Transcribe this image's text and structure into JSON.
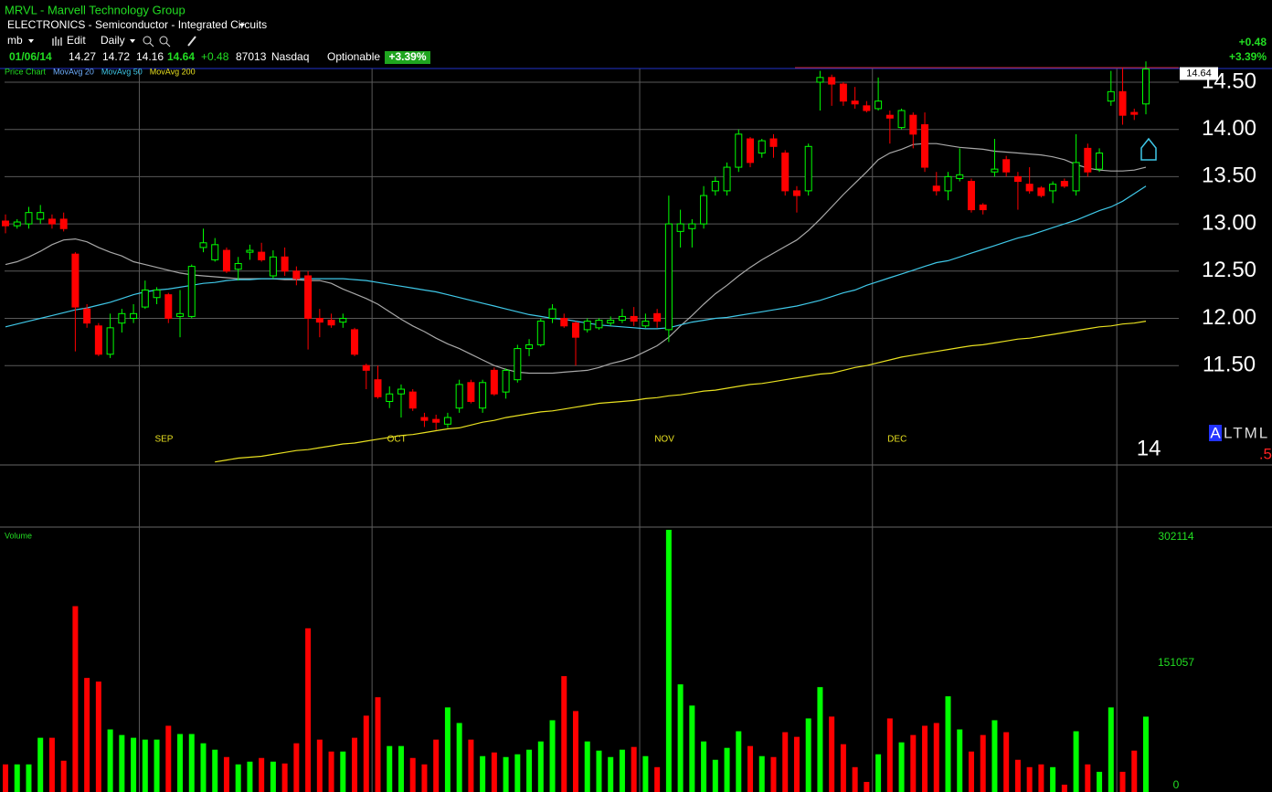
{
  "header": {
    "title": "MRVL - Marvell Technology Group",
    "industry": "ELECTRONICS - Semiconductor - Integrated Circuits",
    "account": "mb",
    "edit": "Edit",
    "period": "Daily",
    "date": "01/06/14",
    "exchange": "Nasdaq",
    "optionable": "Optionable",
    "change": "+0.48",
    "change_pct": "+3.39%"
  },
  "corner": {
    "badge": "A",
    "text": "LTML",
    "red": ".5"
  },
  "chart_data": {
    "type": "candlestick",
    "price_label": "Price Chart",
    "volume_label": "Volume",
    "categories": [
      null,
      null,
      null,
      null,
      null,
      null,
      null,
      null,
      null,
      null,
      null,
      null,
      "SEP",
      null,
      null,
      null,
      null,
      null,
      null,
      null,
      null,
      null,
      null,
      null,
      null,
      null,
      null,
      null,
      null,
      null,
      null,
      null,
      "OCT",
      null,
      null,
      null,
      null,
      null,
      null,
      null,
      null,
      null,
      null,
      null,
      null,
      null,
      null,
      null,
      null,
      null,
      null,
      null,
      null,
      null,
      null,
      "NOV",
      null,
      null,
      null,
      null,
      null,
      null,
      null,
      null,
      null,
      null,
      null,
      null,
      null,
      null,
      null,
      null,
      null,
      null,
      null,
      "DEC",
      null,
      null,
      null,
      null,
      null,
      null,
      null,
      null,
      null,
      null,
      null,
      null,
      null,
      null,
      null,
      null,
      null,
      null,
      null,
      null,
      "14",
      null,
      null
    ],
    "open": [
      13.03,
      12.98,
      13.0,
      13.05,
      13.05,
      13.05,
      12.68,
      12.1,
      11.92,
      11.62,
      11.95,
      12.0,
      12.12,
      12.22,
      12.25,
      12.02,
      12.02,
      12.75,
      12.62,
      12.72,
      12.52,
      12.7,
      12.7,
      12.45,
      12.65,
      12.5,
      12.45,
      12.0,
      11.98,
      11.96,
      11.88,
      11.5,
      11.35,
      11.12,
      11.2,
      11.22,
      10.95,
      10.93,
      10.88,
      11.05,
      11.32,
      11.05,
      11.45,
      11.22,
      11.35,
      11.68,
      11.72,
      12.0,
      12.0,
      11.95,
      11.88,
      11.9,
      11.95,
      11.98,
      12.02,
      11.92,
      12.05,
      11.88,
      12.92,
      12.95,
      13.0,
      13.35,
      13.35,
      13.6,
      13.9,
      13.75,
      13.9,
      13.75,
      13.35,
      13.35,
      14.5,
      14.55,
      14.48,
      14.3,
      14.25,
      14.22,
      14.15,
      14.02,
      14.15,
      14.05,
      13.4,
      13.35,
      13.48,
      13.45,
      13.2,
      13.55,
      13.68,
      13.5,
      13.42,
      13.38,
      13.35,
      13.45,
      13.35,
      13.8,
      13.58,
      14.3,
      14.4,
      14.18,
      14.27
    ],
    "high": [
      13.1,
      13.05,
      13.18,
      13.2,
      13.1,
      13.12,
      12.7,
      12.15,
      11.95,
      12.05,
      12.1,
      12.15,
      12.4,
      12.33,
      12.27,
      12.3,
      12.57,
      12.95,
      12.85,
      12.75,
      12.65,
      12.78,
      12.8,
      12.72,
      12.75,
      12.55,
      12.5,
      12.1,
      12.05,
      12.05,
      11.9,
      11.52,
      11.5,
      11.28,
      11.3,
      11.25,
      11.0,
      10.98,
      11.0,
      11.35,
      11.35,
      11.35,
      11.48,
      11.47,
      11.72,
      11.78,
      12.0,
      12.15,
      12.05,
      11.97,
      12.0,
      12.0,
      12.02,
      12.1,
      12.12,
      12.05,
      12.1,
      13.3,
      13.15,
      13.05,
      13.4,
      13.5,
      13.65,
      14.0,
      13.92,
      13.9,
      13.95,
      13.78,
      13.4,
      13.85,
      14.62,
      14.58,
      14.5,
      14.45,
      14.3,
      14.55,
      14.2,
      14.22,
      14.18,
      14.18,
      13.55,
      13.55,
      13.8,
      13.48,
      13.22,
      13.9,
      13.72,
      13.55,
      13.6,
      13.4,
      13.45,
      13.48,
      13.95,
      13.85,
      13.8,
      14.62,
      14.65,
      14.22,
      14.72
    ],
    "low": [
      12.9,
      12.95,
      12.95,
      13.0,
      12.95,
      12.92,
      11.65,
      11.9,
      11.6,
      11.58,
      11.85,
      11.95,
      12.1,
      12.15,
      11.95,
      11.8,
      12.0,
      12.7,
      12.6,
      12.48,
      12.4,
      12.62,
      12.6,
      12.42,
      12.45,
      12.35,
      11.67,
      11.8,
      11.9,
      11.9,
      11.6,
      11.25,
      11.15,
      11.05,
      10.95,
      11.02,
      10.85,
      10.82,
      10.84,
      11.0,
      11.1,
      11.0,
      11.18,
      11.15,
      11.32,
      11.6,
      11.7,
      11.95,
      11.9,
      11.5,
      11.85,
      11.88,
      11.92,
      11.95,
      11.92,
      11.9,
      11.9,
      11.75,
      12.75,
      12.75,
      12.95,
      13.3,
      13.3,
      13.55,
      13.6,
      13.7,
      13.7,
      13.3,
      13.12,
      13.3,
      14.2,
      14.25,
      14.25,
      14.22,
      14.18,
      14.2,
      13.85,
      14.0,
      13.8,
      13.55,
      13.3,
      13.25,
      13.45,
      13.12,
      13.1,
      13.5,
      13.5,
      13.15,
      13.32,
      13.28,
      13.22,
      13.38,
      13.3,
      13.5,
      13.55,
      14.25,
      14.05,
      14.1,
      14.16
    ],
    "close": [
      12.98,
      13.02,
      13.12,
      13.12,
      13.0,
      12.95,
      12.12,
      11.95,
      11.62,
      11.9,
      12.05,
      12.05,
      12.3,
      12.3,
      12.0,
      12.05,
      12.55,
      12.8,
      12.78,
      12.5,
      12.58,
      12.72,
      12.62,
      12.65,
      12.5,
      12.42,
      12.0,
      11.96,
      11.93,
      12.0,
      11.62,
      11.45,
      11.17,
      11.2,
      11.25,
      11.05,
      10.92,
      10.9,
      10.95,
      11.3,
      11.12,
      11.32,
      11.2,
      11.45,
      11.68,
      11.72,
      11.97,
      12.1,
      11.92,
      11.8,
      11.97,
      11.98,
      11.98,
      12.02,
      11.97,
      11.97,
      11.97,
      13.0,
      13.0,
      13.0,
      13.3,
      13.45,
      13.6,
      13.95,
      13.65,
      13.88,
      13.82,
      13.35,
      13.3,
      13.82,
      14.55,
      14.48,
      14.3,
      14.27,
      14.2,
      14.3,
      14.12,
      14.2,
      13.95,
      13.6,
      13.35,
      13.5,
      13.52,
      13.15,
      13.15,
      13.58,
      13.55,
      13.45,
      13.35,
      13.3,
      13.42,
      13.4,
      13.65,
      13.55,
      13.75,
      14.4,
      14.15,
      14.16,
      14.64
    ],
    "volume": [
      29800,
      29800,
      29800,
      61700,
      61700,
      34200,
      219400,
      133400,
      129000,
      71700,
      65000,
      61700,
      59500,
      59500,
      76100,
      66200,
      66200,
      55100,
      47400,
      38600,
      29800,
      33100,
      37500,
      33100,
      30900,
      55100,
      192900,
      59500,
      45200,
      45200,
      61700,
      88200,
      110300,
      51800,
      51800,
      37500,
      29800,
      59500,
      98100,
      79400,
      59500,
      39700,
      44100,
      38600,
      41900,
      47400,
      57300,
      82700,
      135600,
      93700,
      57300,
      46300,
      38600,
      47400,
      50700,
      39700,
      26500,
      310900,
      125700,
      100300,
      57300,
      35300,
      49600,
      69500,
      51800,
      39700,
      38600,
      68400,
      62800,
      84900,
      122400,
      87100,
      54000,
      26500,
      8800,
      41900,
      84900,
      56200,
      65000,
      76100,
      79400,
      111400,
      71700,
      45200,
      65000,
      82700,
      68400,
      35300,
      26500,
      29800,
      26500,
      5500,
      69500,
      29800,
      20900,
      98100,
      20900,
      46300,
      87013
    ],
    "series": [
      {
        "name": "MovAvg 20",
        "color": "#a8a8a8",
        "values": [
          12.57,
          12.6,
          12.65,
          12.71,
          12.78,
          12.83,
          12.84,
          12.81,
          12.75,
          12.7,
          12.66,
          12.6,
          12.57,
          12.54,
          12.51,
          12.48,
          12.46,
          12.45,
          12.44,
          12.43,
          12.42,
          12.42,
          12.42,
          12.42,
          12.41,
          12.41,
          12.4,
          12.4,
          12.37,
          12.31,
          12.26,
          12.21,
          12.15,
          12.07,
          11.99,
          11.92,
          11.86,
          11.79,
          11.73,
          11.68,
          11.62,
          11.56,
          11.5,
          11.46,
          11.43,
          11.42,
          11.42,
          11.42,
          11.43,
          11.44,
          11.45,
          11.48,
          11.52,
          11.55,
          11.59,
          11.65,
          11.71,
          11.8,
          11.92,
          12.03,
          12.15,
          12.26,
          12.35,
          12.45,
          12.54,
          12.62,
          12.69,
          12.76,
          12.83,
          12.93,
          13.05,
          13.18,
          13.31,
          13.43,
          13.55,
          13.68,
          13.75,
          13.79,
          13.84,
          13.85,
          13.85,
          13.83,
          13.81,
          13.8,
          13.79,
          13.77,
          13.76,
          13.75,
          13.74,
          13.73,
          13.71,
          13.68,
          13.63,
          13.59,
          13.57,
          13.56,
          13.56,
          13.57,
          13.6
        ]
      },
      {
        "name": "MovAvg 50",
        "color": "#3fc8e8",
        "values": [
          11.91,
          11.94,
          11.97,
          12.0,
          12.03,
          12.06,
          12.09,
          12.11,
          12.14,
          12.17,
          12.21,
          12.25,
          12.28,
          12.3,
          12.31,
          12.33,
          12.35,
          12.37,
          12.38,
          12.4,
          12.41,
          12.41,
          12.42,
          12.42,
          12.42,
          12.42,
          12.42,
          12.42,
          12.42,
          12.42,
          12.41,
          12.4,
          12.38,
          12.36,
          12.34,
          12.32,
          12.3,
          12.28,
          12.25,
          12.22,
          12.19,
          12.16,
          12.13,
          12.1,
          12.07,
          12.04,
          12.02,
          12.0,
          11.99,
          11.97,
          11.95,
          11.93,
          11.92,
          11.91,
          11.9,
          11.89,
          11.89,
          11.9,
          11.93,
          11.96,
          11.98,
          12.0,
          12.01,
          12.03,
          12.05,
          12.07,
          12.09,
          12.11,
          12.13,
          12.16,
          12.19,
          12.23,
          12.27,
          12.3,
          12.35,
          12.39,
          12.43,
          12.47,
          12.51,
          12.55,
          12.59,
          12.61,
          12.65,
          12.69,
          12.73,
          12.77,
          12.81,
          12.85,
          12.88,
          12.92,
          12.96,
          13.0,
          13.04,
          13.09,
          13.14,
          13.18,
          13.24,
          13.32,
          13.4
        ]
      },
      {
        "name": "MovAvg 200",
        "color": "#e8e020",
        "values": [
          null,
          null,
          null,
          null,
          null,
          null,
          null,
          null,
          null,
          null,
          null,
          null,
          null,
          null,
          null,
          null,
          null,
          null,
          10.48,
          10.5,
          10.52,
          10.53,
          10.54,
          10.56,
          10.58,
          10.6,
          10.61,
          10.63,
          10.65,
          10.67,
          10.68,
          10.7,
          10.72,
          10.74,
          10.76,
          10.77,
          10.79,
          10.81,
          10.83,
          10.84,
          10.87,
          10.9,
          10.92,
          10.95,
          10.97,
          10.99,
          11.01,
          11.02,
          11.04,
          11.06,
          11.08,
          11.1,
          11.11,
          11.12,
          11.13,
          11.15,
          11.16,
          11.18,
          11.19,
          11.21,
          11.23,
          11.24,
          11.26,
          11.28,
          11.3,
          11.31,
          11.33,
          11.35,
          11.37,
          11.39,
          11.41,
          11.42,
          11.45,
          11.48,
          11.5,
          11.53,
          11.56,
          11.59,
          11.61,
          11.63,
          11.65,
          11.67,
          11.69,
          11.71,
          11.72,
          11.74,
          11.76,
          11.78,
          11.79,
          11.81,
          11.83,
          11.85,
          11.87,
          11.89,
          11.91,
          11.92,
          11.94,
          11.95,
          11.97
        ]
      }
    ],
    "up_color": "#00ff00",
    "down_color": "#ff0000",
    "ylim": [
      10.438,
      14.645
    ],
    "yticks": [
      {
        "value": 11.5,
        "label": "11.50"
      },
      {
        "value": 12,
        "label": "12.00"
      },
      {
        "value": 12.5,
        "label": "12.50"
      },
      {
        "value": 13,
        "label": "13.00"
      },
      {
        "value": 13.5,
        "label": "13.50"
      },
      {
        "value": 14,
        "label": "14.00"
      },
      {
        "value": 14.5,
        "label": "14.50"
      }
    ],
    "volume_ylim": [
      0,
      313060
    ],
    "volume_yticks": [
      0,
      151057,
      302114
    ],
    "grid": true
  }
}
